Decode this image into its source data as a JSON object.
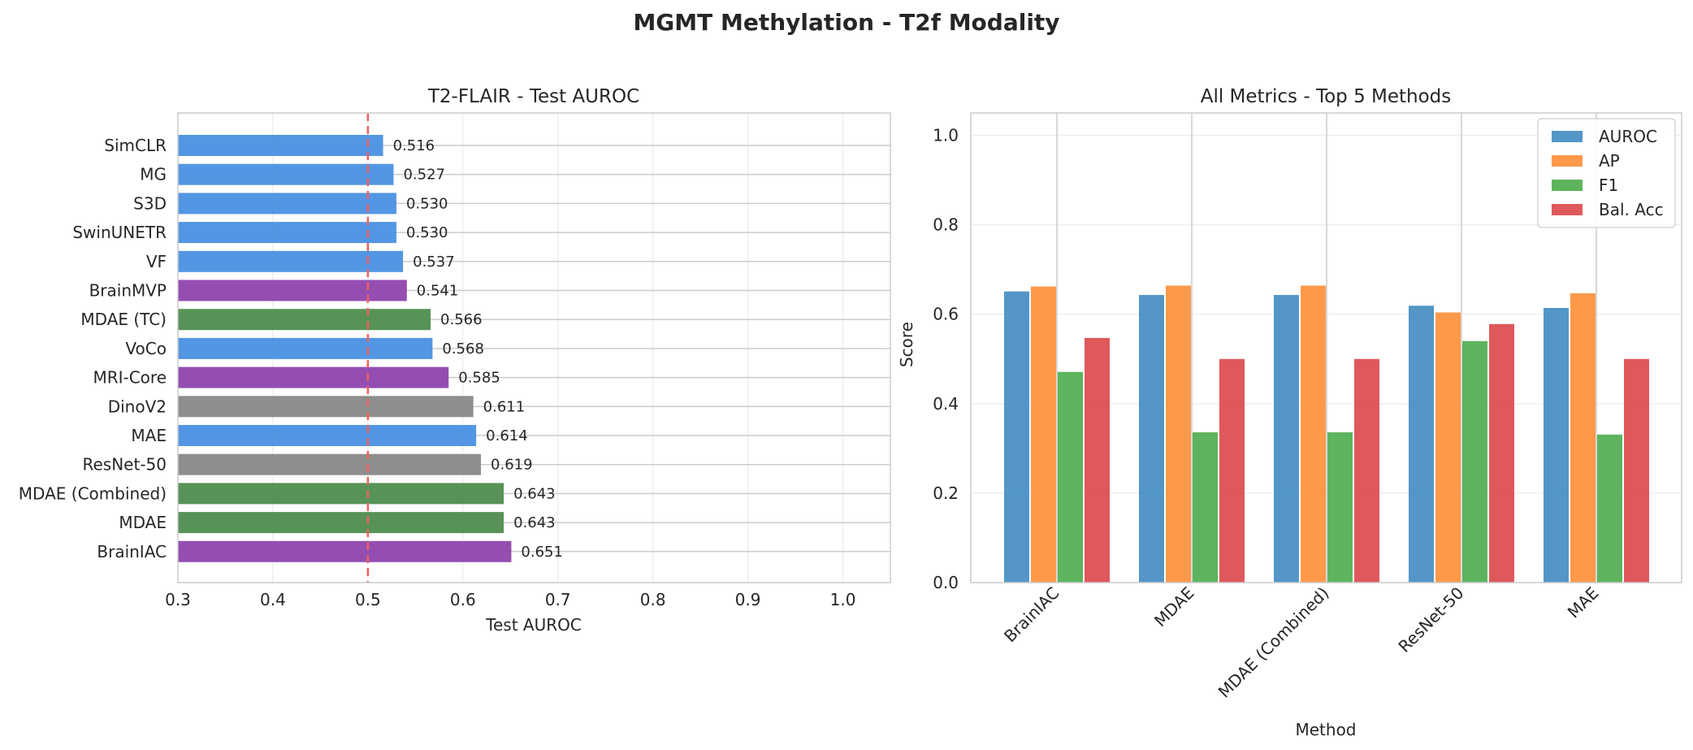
{
  "suptitle": "MGMT Methylation - T2f Modality",
  "colors": {
    "blue": "#4a90e2",
    "purple": "#8e44ad",
    "green": "#4e8d4e",
    "gray": "#888888",
    "threshold": "#f06060",
    "auroc": "#4a90c4",
    "ap": "#ff9340",
    "f1": "#55b055",
    "balacc": "#dd4f52"
  },
  "chart_data": [
    {
      "type": "bar",
      "orientation": "horizontal",
      "title": "T2-FLAIR - Test AUROC",
      "xlabel": "Test AUROC",
      "ylabel": "",
      "xlim": [
        0.3,
        1.05
      ],
      "xticks": [
        "0.3",
        "0.4",
        "0.5",
        "0.6",
        "0.7",
        "0.8",
        "0.9",
        "1.0"
      ],
      "grid": true,
      "reference_line": {
        "x": 0.5,
        "style": "dashed",
        "color": "#f06060"
      },
      "categories": [
        "SimCLR",
        "MG",
        "S3D",
        "SwinUNETR",
        "VF",
        "BrainMVP",
        "MDAE (TC)",
        "VoCo",
        "MRI-Core",
        "DinoV2",
        "MAE",
        "ResNet-50",
        "MDAE (Combined)",
        "MDAE",
        "BrainIAC"
      ],
      "values": [
        0.516,
        0.527,
        0.53,
        0.53,
        0.537,
        0.541,
        0.566,
        0.568,
        0.585,
        0.611,
        0.614,
        0.619,
        0.643,
        0.643,
        0.651
      ],
      "value_labels": [
        "0.516",
        "0.527",
        "0.530",
        "0.530",
        "0.537",
        "0.541",
        "0.566",
        "0.568",
        "0.585",
        "0.611",
        "0.614",
        "0.619",
        "0.643",
        "0.643",
        "0.651"
      ],
      "bar_colors": [
        "blue",
        "blue",
        "blue",
        "blue",
        "blue",
        "purple",
        "green",
        "blue",
        "purple",
        "gray",
        "blue",
        "gray",
        "green",
        "green",
        "purple"
      ]
    },
    {
      "type": "bar",
      "title": "All Metrics - Top 5 Methods",
      "xlabel": "Method",
      "ylabel": "Score",
      "ylim": [
        0.0,
        1.05
      ],
      "yticks": [
        "0.0",
        "0.2",
        "0.4",
        "0.6",
        "0.8",
        "1.0"
      ],
      "grid": true,
      "legend_position": "top-right",
      "categories": [
        "BrainIAC",
        "MDAE",
        "MDAE (Combined)",
        "ResNet-50",
        "MAE"
      ],
      "series": [
        {
          "name": "AUROC",
          "color": "auroc",
          "values": [
            0.651,
            0.643,
            0.643,
            0.619,
            0.614
          ]
        },
        {
          "name": "AP",
          "color": "ap",
          "values": [
            0.662,
            0.664,
            0.664,
            0.604,
            0.647
          ]
        },
        {
          "name": "F1",
          "color": "f1",
          "values": [
            0.471,
            0.336,
            0.336,
            0.54,
            0.331
          ]
        },
        {
          "name": "Bal. Acc",
          "color": "balacc",
          "values": [
            0.547,
            0.5,
            0.5,
            0.578,
            0.5
          ]
        }
      ]
    }
  ]
}
